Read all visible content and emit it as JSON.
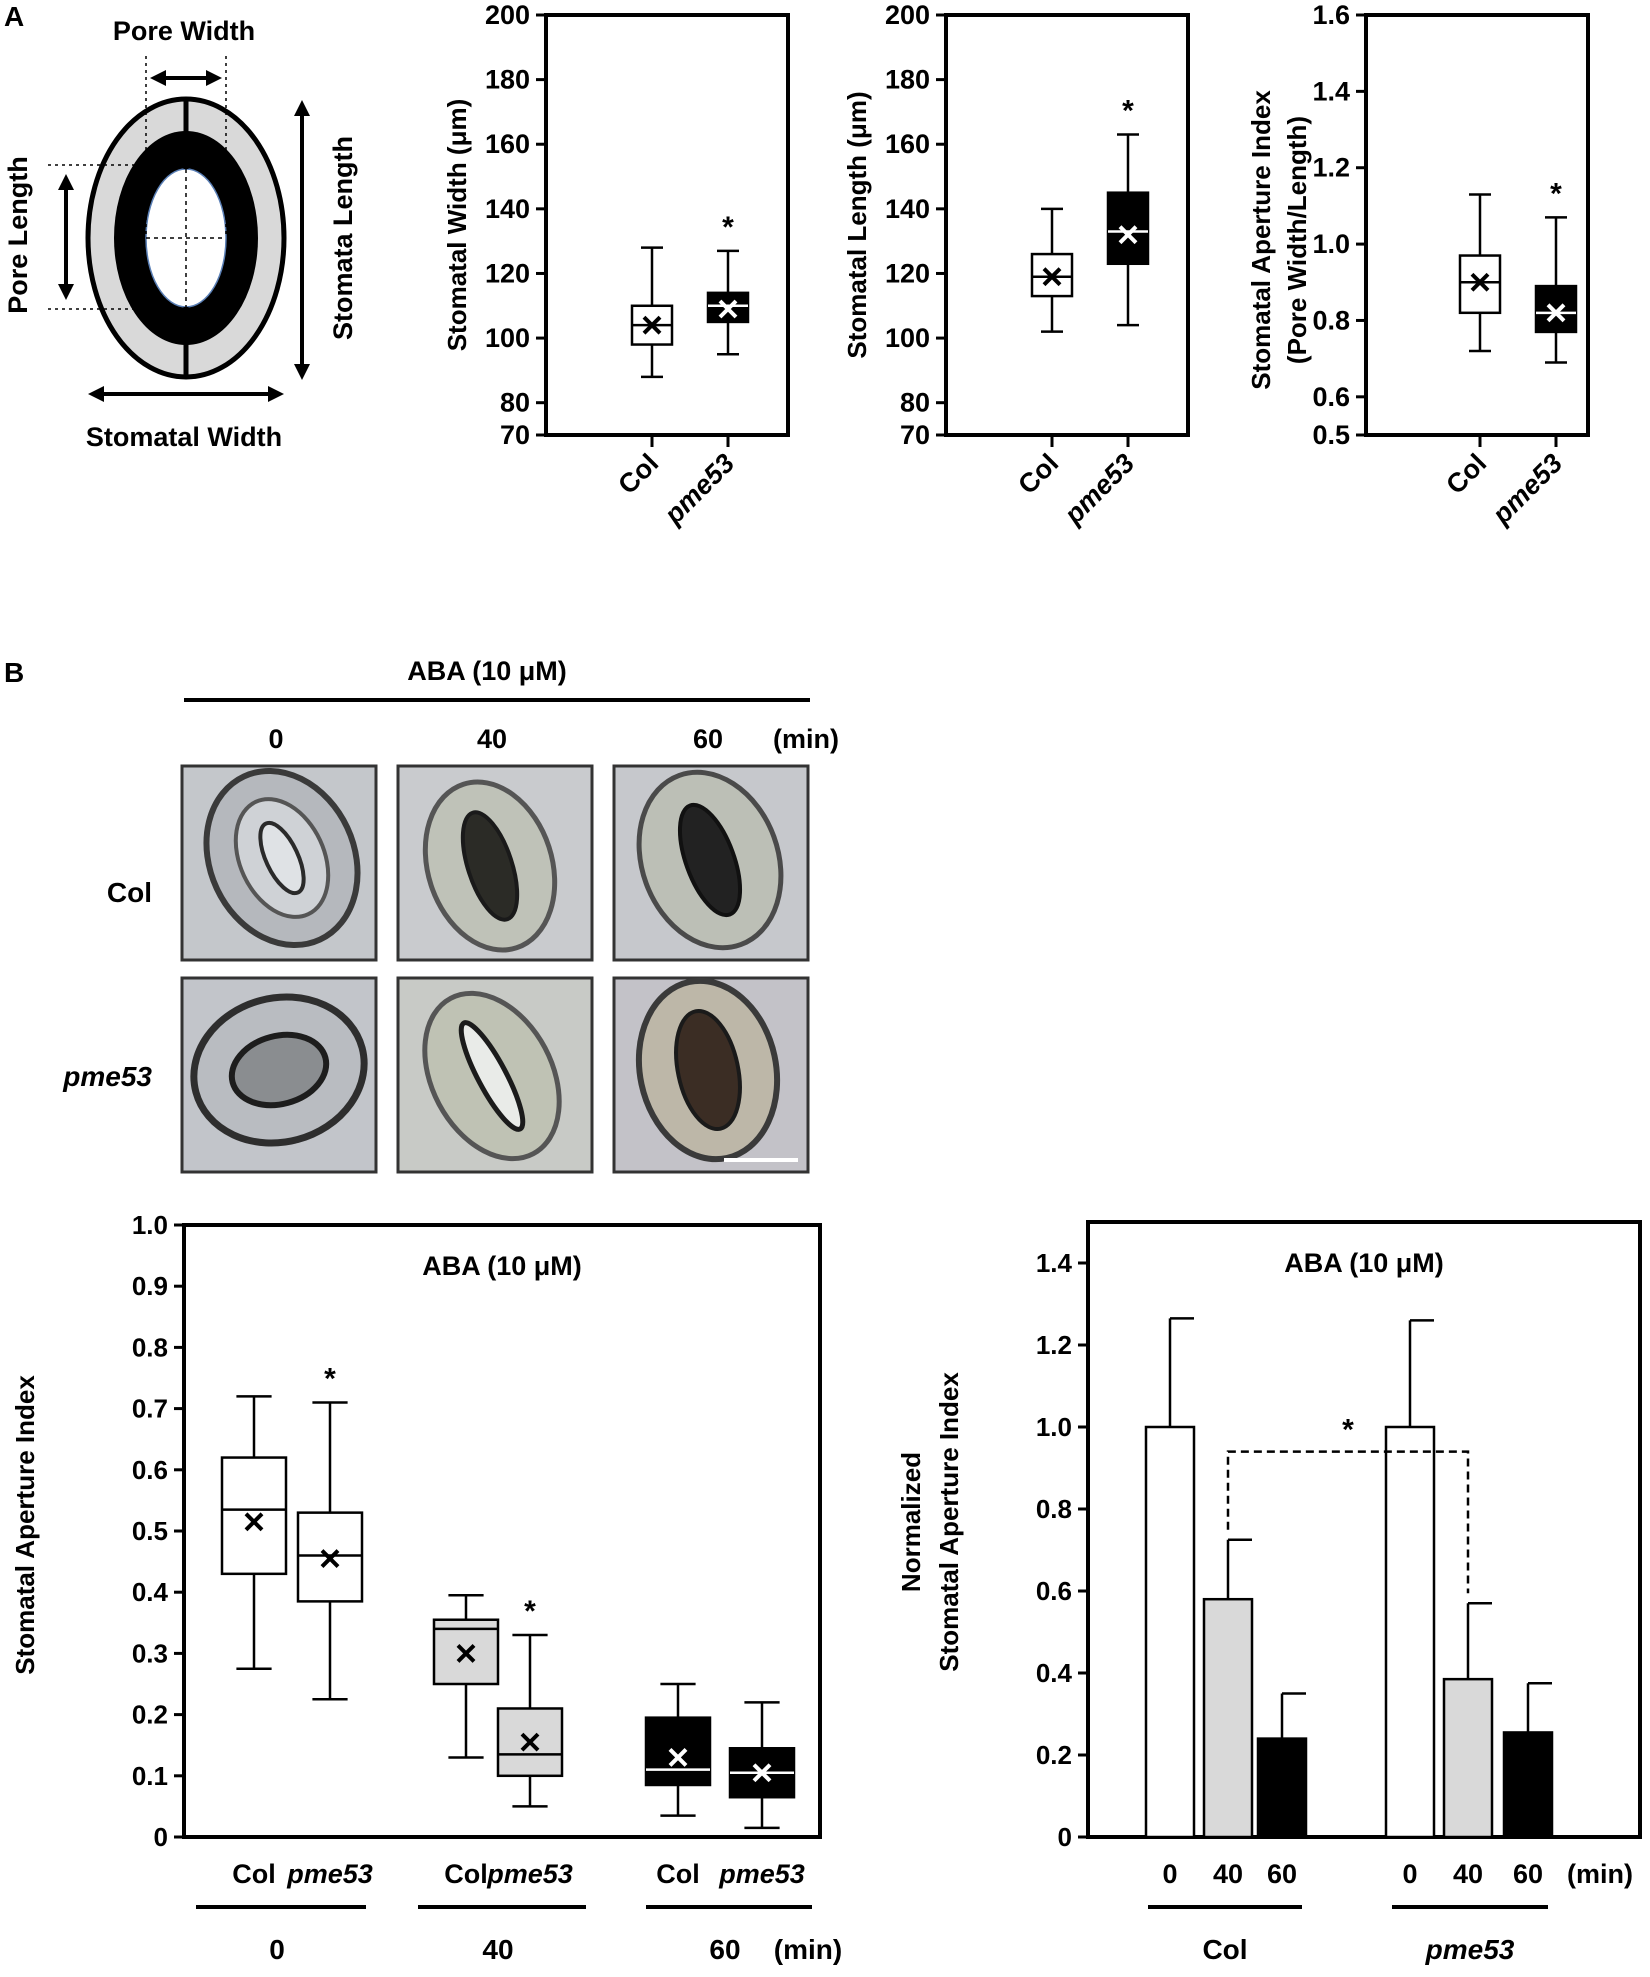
{
  "panels": {
    "A": "A",
    "B": "B"
  },
  "diagram": {
    "pore_width": "Pore Width",
    "pore_length": "Pore Length",
    "stomata_length": "Stomata Length",
    "stomatal_width": "Stomatal Width"
  },
  "images": {
    "header": "ABA (10 μM)",
    "times": [
      "0",
      "40",
      "60"
    ],
    "time_unit": "(min)",
    "rows": [
      "Col",
      "pme53"
    ]
  },
  "colors": {
    "col_fill": "#ffffff",
    "pme53_fill": "#000000",
    "light_gray": "#d9d9d9",
    "dark": "#000000"
  },
  "chart_data": [
    {
      "type": "box",
      "ylabel": "Stomatal Width (μm)",
      "ylim": [
        70,
        200
      ],
      "yticks": [
        70,
        80,
        100,
        120,
        140,
        160,
        180,
        200
      ],
      "categories": [
        "Col",
        "pme53"
      ],
      "boxes": [
        {
          "name": "Col",
          "min": 88,
          "q1": 98,
          "median": 104,
          "q3": 110,
          "max": 128,
          "mean": 104,
          "fill": "#ffffff"
        },
        {
          "name": "pme53",
          "min": 95,
          "q1": 105,
          "median": 110,
          "q3": 114,
          "max": 127,
          "mean": 109,
          "fill": "#000000"
        }
      ],
      "annotations": [
        {
          "text": "*",
          "category": "pme53"
        }
      ]
    },
    {
      "type": "box",
      "ylabel": "Stomatal Length (μm)",
      "ylim": [
        70,
        200
      ],
      "yticks": [
        70,
        80,
        100,
        120,
        140,
        160,
        180,
        200
      ],
      "categories": [
        "Col",
        "pme53"
      ],
      "boxes": [
        {
          "name": "Col",
          "min": 102,
          "q1": 113,
          "median": 119,
          "q3": 126,
          "max": 140,
          "mean": 119,
          "fill": "#ffffff"
        },
        {
          "name": "pme53",
          "min": 104,
          "q1": 123,
          "median": 133,
          "q3": 145,
          "max": 163,
          "mean": 132,
          "fill": "#000000"
        }
      ],
      "annotations": [
        {
          "text": "*",
          "category": "pme53"
        }
      ]
    },
    {
      "type": "box",
      "ylabel": "Stomatal Aperture Index",
      "ylabel2": "(Pore Width/Length)",
      "ylim": [
        0.5,
        1.6
      ],
      "yticks": [
        0.5,
        0.6,
        0.8,
        1.0,
        1.2,
        1.4,
        1.6
      ],
      "categories": [
        "Col",
        "pme53"
      ],
      "boxes": [
        {
          "name": "Col",
          "min": 0.72,
          "q1": 0.82,
          "median": 0.9,
          "q3": 0.97,
          "max": 1.13,
          "mean": 0.9,
          "fill": "#ffffff"
        },
        {
          "name": "pme53",
          "min": 0.69,
          "q1": 0.77,
          "median": 0.82,
          "q3": 0.89,
          "max": 1.07,
          "mean": 0.82,
          "fill": "#000000"
        }
      ],
      "annotations": [
        {
          "text": "*",
          "category": "pme53"
        }
      ]
    },
    {
      "type": "box",
      "title": "ABA (10 μM)",
      "ylabel": "Stomatal Aperture Index",
      "ylim": [
        0,
        1.0
      ],
      "yticks": [
        0,
        0.1,
        0.2,
        0.3,
        0.4,
        0.5,
        0.6,
        0.7,
        0.8,
        0.9,
        1.0
      ],
      "categories": [
        "Col",
        "pme53",
        "Col",
        "pme53",
        "Col",
        "pme53"
      ],
      "groups": [
        {
          "label": "0"
        },
        {
          "label": "40"
        },
        {
          "label": "60"
        }
      ],
      "group_unit": "(min)",
      "boxes": [
        {
          "name": "Col 0",
          "min": 0.275,
          "q1": 0.43,
          "median": 0.535,
          "q3": 0.62,
          "max": 0.72,
          "mean": 0.515,
          "fill": "#ffffff"
        },
        {
          "name": "pme53 0",
          "min": 0.225,
          "q1": 0.385,
          "median": 0.46,
          "q3": 0.53,
          "max": 0.71,
          "mean": 0.455,
          "fill": "#ffffff"
        },
        {
          "name": "Col 40",
          "min": 0.13,
          "q1": 0.25,
          "median": 0.34,
          "q3": 0.355,
          "max": 0.395,
          "mean": 0.3,
          "fill": "#d9d9d9"
        },
        {
          "name": "pme53 40",
          "min": 0.05,
          "q1": 0.1,
          "median": 0.135,
          "q3": 0.21,
          "max": 0.33,
          "mean": 0.155,
          "fill": "#d9d9d9"
        },
        {
          "name": "Col 60",
          "min": 0.035,
          "q1": 0.085,
          "median": 0.11,
          "q3": 0.195,
          "max": 0.25,
          "mean": 0.13,
          "fill": "#000000"
        },
        {
          "name": "pme53 60",
          "min": 0.015,
          "q1": 0.065,
          "median": 0.105,
          "q3": 0.145,
          "max": 0.22,
          "mean": 0.105,
          "fill": "#000000"
        }
      ],
      "annotations": [
        {
          "text": "*",
          "box": 1
        },
        {
          "text": "*",
          "box": 3
        }
      ]
    },
    {
      "type": "bar",
      "title": "ABA (10 μM)",
      "ylabel": "Normalized",
      "ylabel2": "Stomatal Aperture Index",
      "ylim": [
        0,
        1.5
      ],
      "yticks": [
        0,
        0.2,
        0.4,
        0.6,
        0.8,
        1.0,
        1.2,
        1.4
      ],
      "categories": [
        "0",
        "40",
        "60",
        "0",
        "40",
        "60"
      ],
      "groups": [
        {
          "label": "Col"
        },
        {
          "label": "pme53"
        }
      ],
      "category_unit": "(min)",
      "values": [
        1.0,
        0.58,
        0.24,
        1.0,
        0.385,
        0.255
      ],
      "errors": [
        0.265,
        0.145,
        0.11,
        0.26,
        0.185,
        0.12
      ],
      "fills": [
        "#ffffff",
        "#d9d9d9",
        "#000000",
        "#ffffff",
        "#d9d9d9",
        "#000000"
      ],
      "annotations": [
        {
          "text": "*",
          "between": [
            1,
            4
          ]
        }
      ]
    }
  ]
}
